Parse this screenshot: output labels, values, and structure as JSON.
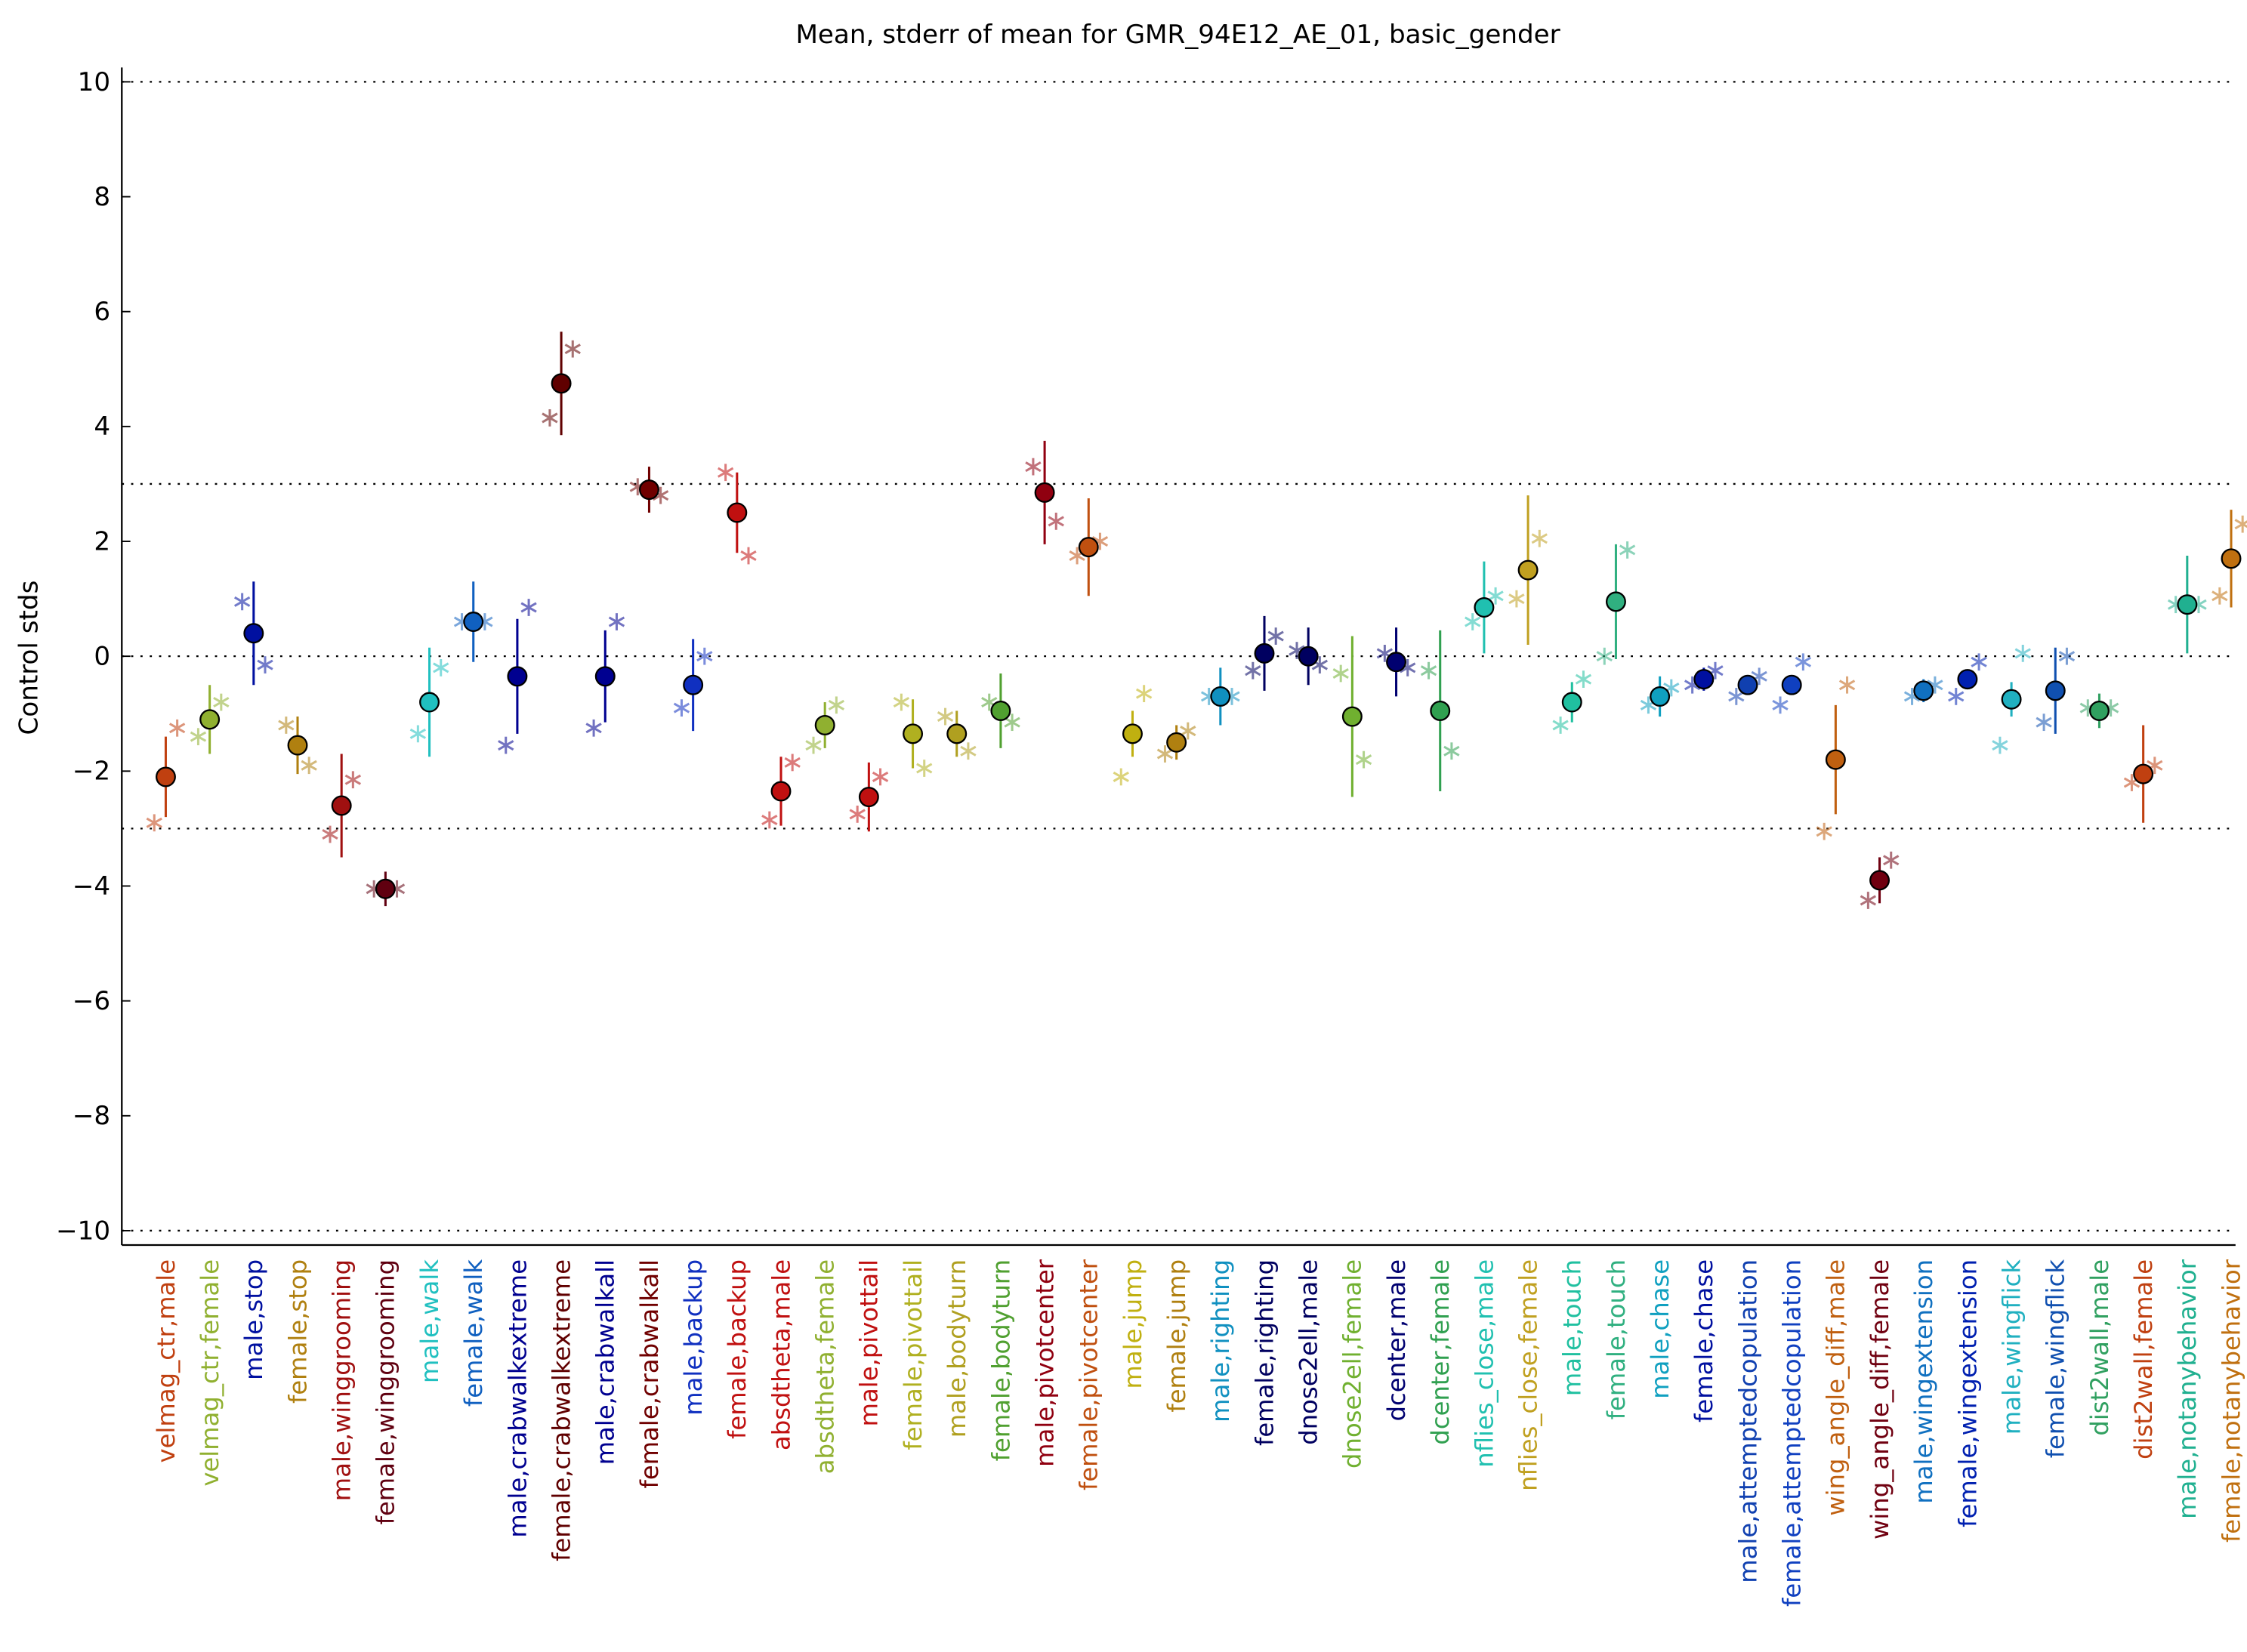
{
  "chart_data": {
    "type": "errorbar",
    "title": "Mean, stderr of mean for GMR_94E12_AE_01, basic_gender",
    "ylabel": "Control stds",
    "ylim": [
      -10.25,
      10.25
    ],
    "yticks": [
      {
        "value": -10,
        "label": "−10"
      },
      {
        "value": -8,
        "label": "−8"
      },
      {
        "value": -6,
        "label": "−6"
      },
      {
        "value": -4,
        "label": "−4"
      },
      {
        "value": -2,
        "label": "−2"
      },
      0,
      2,
      4,
      6,
      8,
      10
    ],
    "reference_lines": [
      -10,
      -3,
      0,
      3,
      10
    ],
    "categories": [
      "velmag_ctr,male",
      "velmag_ctr,female",
      "male,stop",
      "female,stop",
      "male,winggrooming",
      "female,winggrooming",
      "male,walk",
      "female,walk",
      "male,crabwalkextreme",
      "female,crabwalkextreme",
      "male,crabwalkall",
      "female,crabwalkall",
      "male,backup",
      "female,backup",
      "absdtheta,male",
      "absdtheta,female",
      "male,pivottail",
      "female,pivottail",
      "male,bodyturn",
      "female,bodyturn",
      "male,pivotcenter",
      "female,pivotcenter",
      "male,jump",
      "female,jump",
      "male,righting",
      "female,righting",
      "dnose2ell,male",
      "dnose2ell,female",
      "dcenter,male",
      "dcenter,female",
      "nflies_close,male",
      "nflies_close,female",
      "male,touch",
      "female,touch",
      "male,chase",
      "female,chase",
      "male,attemptedcopulation",
      "female,attemptedcopulation",
      "wing_angle_diff,male",
      "wing_angle_diff,female",
      "male,wingextension",
      "female,wingextension",
      "male,wingflick",
      "female,wingflick",
      "dist2wall,male",
      "dist2wall,female",
      "male,notanybehavior",
      "female,notanybehavior"
    ],
    "values": [
      -2.1,
      -1.1,
      0.4,
      -1.55,
      -2.6,
      -4.05,
      -0.8,
      0.6,
      -0.35,
      4.75,
      -0.35,
      2.9,
      -0.5,
      2.5,
      -2.35,
      -1.2,
      -2.45,
      -1.35,
      -1.35,
      -0.95,
      2.85,
      1.9,
      -1.35,
      -1.5,
      -0.7,
      0.05,
      0,
      -1.05,
      -0.1,
      -0.95,
      0.85,
      1.5,
      -0.8,
      0.95,
      -0.7,
      -0.4,
      -0.5,
      -0.5,
      -1.8,
      -3.9,
      -0.6,
      -0.4,
      -0.75,
      -0.6,
      -0.95,
      -2.05,
      0.9,
      1.7
    ],
    "errors": [
      0.7,
      0.6,
      0.9,
      0.5,
      0.9,
      0.3,
      0.95,
      0.7,
      1.0,
      0.9,
      0.8,
      0.4,
      0.8,
      0.7,
      0.6,
      0.4,
      0.6,
      0.6,
      0.4,
      0.65,
      0.9,
      0.85,
      0.4,
      0.3,
      0.5,
      0.65,
      0.5,
      1.4,
      0.6,
      1.4,
      0.8,
      1.3,
      0.35,
      1.0,
      0.35,
      0.2,
      0.15,
      0.15,
      0.95,
      0.4,
      0.2,
      0.15,
      0.3,
      0.75,
      0.3,
      0.85,
      0.85,
      0.85
    ],
    "star_left": [
      -2.9,
      -1.4,
      0.95,
      -1.2,
      -3.1,
      -4.05,
      -1.35,
      0.6,
      -1.55,
      4.15,
      -1.25,
      2.95,
      -0.9,
      3.2,
      -2.85,
      -1.55,
      -2.75,
      -0.8,
      -1.05,
      -0.8,
      3.3,
      1.75,
      -2.1,
      -1.7,
      -0.7,
      -0.25,
      0.1,
      -0.3,
      0.05,
      -0.25,
      0.6,
      1.0,
      -1.2,
      0.0,
      -0.85,
      -0.5,
      -0.7,
      -0.85,
      -3.05,
      -4.25,
      -0.7,
      -0.7,
      -1.55,
      -1.15,
      -0.9,
      -2.2,
      0.9,
      1.05
    ],
    "star_right": [
      -1.25,
      -0.8,
      -0.15,
      -1.9,
      -2.15,
      -4.05,
      -0.2,
      0.6,
      0.85,
      5.35,
      0.6,
      2.8,
      0,
      1.75,
      -1.85,
      -0.85,
      -2.1,
      -1.95,
      -1.65,
      -1.15,
      2.35,
      2.0,
      -0.65,
      -1.3,
      -0.7,
      0.35,
      -0.15,
      -1.8,
      -0.2,
      -1.65,
      1.05,
      2.05,
      -0.4,
      1.85,
      -0.55,
      -0.25,
      -0.35,
      -0.1,
      -0.5,
      -3.55,
      -0.5,
      -0.1,
      0.05,
      0.0,
      -0.9,
      -1.9,
      0.9,
      2.3
    ],
    "colors": [
      "#c04010",
      "#90b030",
      "#0010a0",
      "#b08010",
      "#a01010",
      "#600010",
      "#20c0c0",
      "#1060c0",
      "#000090",
      "#600000",
      "#000090",
      "#700000",
      "#1030c0",
      "#c01010",
      "#c01010",
      "#90b030",
      "#c01010",
      "#b0b020",
      "#b0a020",
      "#50a030",
      "#900010",
      "#c05010",
      "#c0b010",
      "#b08010",
      "#1090c0",
      "#000060",
      "#000060",
      "#70b030",
      "#000070",
      "#30a050",
      "#20c0b0",
      "#c0a020",
      "#20c0a0",
      "#30b080",
      "#10a0c0",
      "#0010a0",
      "#1040b0",
      "#1040c0",
      "#c06010",
      "#700010",
      "#1070c0",
      "#0020b0",
      "#20b0c0",
      "#1050b0",
      "#30a060",
      "#c04010",
      "#20b090",
      "#c07010"
    ]
  }
}
